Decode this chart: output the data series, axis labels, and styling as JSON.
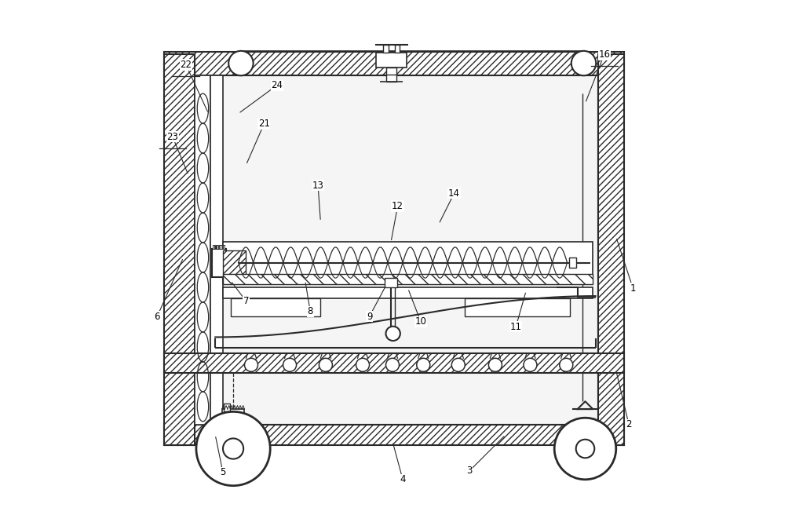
{
  "bg_color": "#ffffff",
  "lc": "#2a2a2a",
  "fig_width": 10.0,
  "fig_height": 6.56,
  "dpi": 100,
  "labels": [
    [
      1,
      0.968,
      0.44,
      0.935,
      0.54
    ],
    [
      2,
      0.96,
      0.175,
      0.935,
      0.28
    ],
    [
      3,
      0.65,
      0.085,
      0.72,
      0.155
    ],
    [
      4,
      0.52,
      0.068,
      0.5,
      0.142
    ],
    [
      5,
      0.17,
      0.082,
      0.155,
      0.155
    ],
    [
      6,
      0.042,
      0.385,
      0.093,
      0.5
    ],
    [
      7,
      0.215,
      0.415,
      0.185,
      0.455
    ],
    [
      8,
      0.34,
      0.395,
      0.33,
      0.455
    ],
    [
      9,
      0.455,
      0.385,
      0.487,
      0.445
    ],
    [
      10,
      0.555,
      0.375,
      0.53,
      0.44
    ],
    [
      11,
      0.74,
      0.365,
      0.76,
      0.435
    ],
    [
      12,
      0.51,
      0.6,
      0.497,
      0.53
    ],
    [
      13,
      0.355,
      0.64,
      0.36,
      0.57
    ],
    [
      14,
      0.62,
      0.625,
      0.59,
      0.565
    ],
    [
      16,
      0.912,
      0.895,
      0.875,
      0.8
    ],
    [
      21,
      0.25,
      0.76,
      0.215,
      0.68
    ],
    [
      22,
      0.098,
      0.875,
      0.142,
      0.78
    ],
    [
      23,
      0.072,
      0.735,
      0.103,
      0.66
    ],
    [
      24,
      0.275,
      0.835,
      0.2,
      0.78
    ]
  ]
}
